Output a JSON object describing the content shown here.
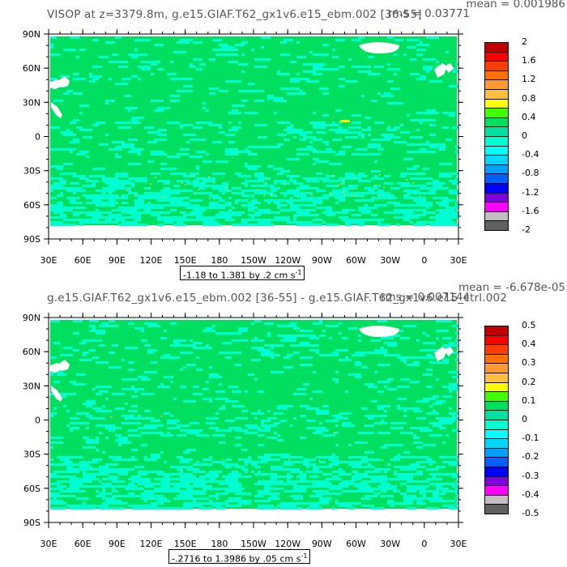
{
  "panels": [
    {
      "id": "top",
      "title": "VISOP at z=3379.8m, g.e15.GIAF.T62_gx1v6.e15_ebm.002 [36-55]",
      "mean_label": "mean = 0.001986",
      "rms_label": "rms = 0.03771",
      "range_text": "-1.18 to 1.381 by .2 cm s",
      "range_superscript": "-1",
      "colorbar": {
        "labels": [
          "2",
          "1.6",
          "1.2",
          "0.8",
          "0.4",
          "0",
          "-0.4",
          "-0.8",
          "-1.2",
          "-1.6",
          "-2"
        ],
        "colors": [
          "#c00000",
          "#ff0000",
          "#ff3c00",
          "#ff7000",
          "#ff9a30",
          "#ffbf40",
          "#ffff00",
          "#40ff00",
          "#00e060",
          "#00e0a0",
          "#00ffd0",
          "#00ffff",
          "#00d8ff",
          "#00a0ff",
          "#0060ff",
          "#0000ff",
          "#8000e0",
          "#ff00ff",
          "#c0c0c0",
          "#606060"
        ]
      }
    },
    {
      "id": "bottom",
      "title": "g.e15.GIAF.T62_gx1v6.e15_ebm.002 [36-55] - g.e15.GIAF.T62_gx1v6.e15_ctrl.002",
      "mean_label": "mean = -6.678e-05",
      "rms_label": "rms = 0.007144",
      "range_text": "-.2716 to 1.3986 by .05 cm s",
      "range_superscript": "-1",
      "colorbar": {
        "labels": [
          "0.5",
          "0.4",
          "0.3",
          "0.2",
          "0.1",
          "0",
          "-0.1",
          "-0.2",
          "-0.3",
          "-0.4",
          "-0.5"
        ],
        "colors": [
          "#c00000",
          "#ff0000",
          "#ff3c00",
          "#ff7000",
          "#ff9a30",
          "#ffbf40",
          "#ffff00",
          "#40ff00",
          "#00e060",
          "#00e0a0",
          "#00ffd0",
          "#00ffff",
          "#00d8ff",
          "#00a0ff",
          "#0060ff",
          "#0000ff",
          "#8000e0",
          "#ff00ff",
          "#c0c0c0",
          "#606060"
        ]
      }
    }
  ],
  "axes": {
    "lat_labels": [
      "90N",
      "60N",
      "30N",
      "0",
      "30S",
      "60S",
      "90S"
    ],
    "lon_labels": [
      "30E",
      "60E",
      "90E",
      "120E",
      "150E",
      "180",
      "150W",
      "120W",
      "90W",
      "60W",
      "30W",
      "0",
      "30E"
    ]
  },
  "colors": {
    "ocean_base": "#00e060",
    "ocean_cyan": "#00ffd0",
    "land": "#ffffff",
    "yellow": "#ffff00",
    "orange": "#ffbf40"
  }
}
